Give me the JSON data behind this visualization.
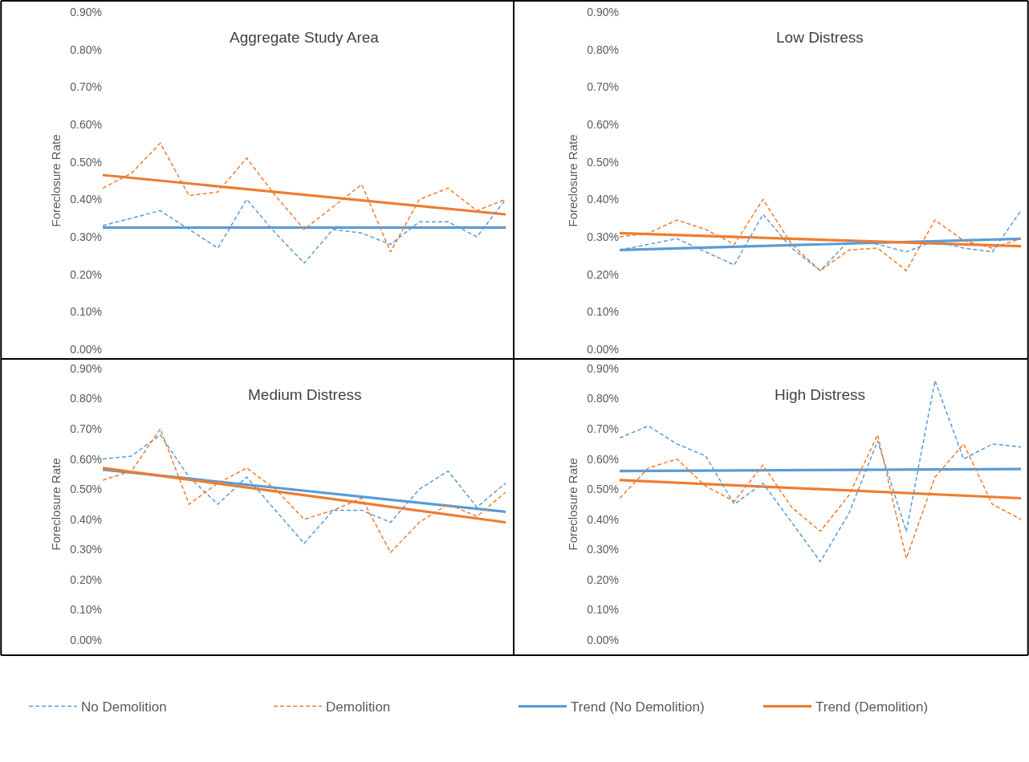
{
  "chart_data": [
    {
      "type": "line",
      "title": "Aggregate Study Area",
      "ylabel": "Foreclosure Rate",
      "categories": [
        null,
        null,
        null,
        null,
        null,
        null,
        null,
        null,
        null,
        null,
        null,
        null,
        null,
        null,
        null
      ],
      "ylim": [
        0,
        0.9
      ],
      "yticks": [
        {
          "value": 0,
          "label": "0.00%"
        },
        {
          "value": 0.1,
          "label": "0.10%"
        },
        {
          "value": 0.2,
          "label": "0.20%"
        },
        {
          "value": 0.3,
          "label": "0.30%"
        },
        {
          "value": 0.4,
          "label": "0.40%"
        },
        {
          "value": 0.5,
          "label": "0.50%"
        },
        {
          "value": 0.6,
          "label": "0.60%"
        },
        {
          "value": 0.7,
          "label": "0.70%"
        },
        {
          "value": 0.8,
          "label": "0.80%"
        },
        {
          "value": 0.9,
          "label": "0.90%"
        }
      ],
      "tick_labels": "y",
      "grid": false,
      "legend": "bottom",
      "marker": "none",
      "series": [
        {
          "name": "No Demolition",
          "color": "#5b9bd5",
          "line_style": "dashed",
          "values": [
            0.33,
            0.35,
            0.37,
            0.32,
            0.27,
            0.4,
            0.31,
            0.23,
            0.32,
            0.31,
            0.28,
            0.34,
            0.34,
            0.3,
            0.4
          ]
        },
        {
          "name": "Demolition",
          "color": "#ed7d31",
          "line_style": "dashed",
          "values": [
            0.43,
            0.47,
            0.55,
            0.41,
            0.42,
            0.51,
            0.41,
            0.32,
            0.38,
            0.44,
            0.26,
            0.4,
            0.43,
            0.37,
            0.4
          ]
        },
        {
          "name": "Trend (No Demolition)",
          "color": "#5b9bd5",
          "line_style": "solid",
          "values": [
            0.325,
            null,
            null,
            null,
            null,
            null,
            null,
            null,
            null,
            null,
            null,
            null,
            null,
            null,
            0.325
          ]
        },
        {
          "name": "Trend (Demolition)",
          "color": "#ed7d31",
          "line_style": "solid",
          "values": [
            0.465,
            null,
            null,
            null,
            null,
            null,
            null,
            null,
            null,
            null,
            null,
            null,
            null,
            null,
            0.36
          ]
        }
      ]
    },
    {
      "type": "line",
      "title": "Low Distress",
      "ylabel": "Foreclosure Rate",
      "categories": [
        null,
        null,
        null,
        null,
        null,
        null,
        null,
        null,
        null,
        null,
        null,
        null,
        null,
        null,
        null
      ],
      "ylim": [
        0,
        0.9
      ],
      "yticks": [
        {
          "value": 0,
          "label": "0.00%"
        },
        {
          "value": 0.1,
          "label": "0.10%"
        },
        {
          "value": 0.2,
          "label": "0.20%"
        },
        {
          "value": 0.3,
          "label": "0.30%"
        },
        {
          "value": 0.4,
          "label": "0.40%"
        },
        {
          "value": 0.5,
          "label": "0.50%"
        },
        {
          "value": 0.6,
          "label": "0.60%"
        },
        {
          "value": 0.7,
          "label": "0.70%"
        },
        {
          "value": 0.8,
          "label": "0.80%"
        },
        {
          "value": 0.9,
          "label": "0.90%"
        }
      ],
      "tick_labels": "y",
      "grid": false,
      "legend": "bottom",
      "marker": "none",
      "series": [
        {
          "name": "No Demolition",
          "color": "#5b9bd5",
          "line_style": "dashed",
          "values": [
            0.265,
            0.28,
            0.295,
            0.26,
            0.225,
            0.36,
            0.27,
            0.21,
            0.29,
            0.28,
            0.26,
            0.29,
            0.27,
            0.26,
            0.37
          ]
        },
        {
          "name": "Demolition",
          "color": "#ed7d31",
          "line_style": "dashed",
          "values": [
            0.3,
            0.31,
            0.345,
            0.32,
            0.28,
            0.4,
            0.28,
            0.21,
            0.265,
            0.27,
            0.21,
            0.345,
            0.29,
            0.27,
            0.295
          ]
        },
        {
          "name": "Trend (No Demolition)",
          "color": "#5b9bd5",
          "line_style": "solid",
          "values": [
            0.265,
            null,
            null,
            null,
            null,
            null,
            null,
            null,
            null,
            null,
            null,
            null,
            null,
            null,
            0.295
          ]
        },
        {
          "name": "Trend (Demolition)",
          "color": "#ed7d31",
          "line_style": "solid",
          "values": [
            0.31,
            null,
            null,
            null,
            null,
            null,
            null,
            null,
            null,
            null,
            null,
            null,
            null,
            null,
            0.275
          ]
        }
      ]
    },
    {
      "type": "line",
      "title": "Medium Distress",
      "ylabel": "Foreclosure Rate",
      "categories": [
        null,
        null,
        null,
        null,
        null,
        null,
        null,
        null,
        null,
        null,
        null,
        null,
        null,
        null,
        null
      ],
      "ylim": [
        0,
        0.9
      ],
      "yticks": [
        {
          "value": 0,
          "label": "0.00%"
        },
        {
          "value": 0.1,
          "label": "0.10%"
        },
        {
          "value": 0.2,
          "label": "0.20%"
        },
        {
          "value": 0.3,
          "label": "0.30%"
        },
        {
          "value": 0.4,
          "label": "0.40%"
        },
        {
          "value": 0.5,
          "label": "0.50%"
        },
        {
          "value": 0.6,
          "label": "0.60%"
        },
        {
          "value": 0.7,
          "label": "0.70%"
        },
        {
          "value": 0.8,
          "label": "0.80%"
        },
        {
          "value": 0.9,
          "label": "0.90%"
        }
      ],
      "tick_labels": "y",
      "grid": false,
      "legend": "bottom",
      "marker": "none",
      "series": [
        {
          "name": "No Demolition",
          "color": "#5b9bd5",
          "line_style": "dashed",
          "values": [
            0.6,
            0.61,
            0.68,
            0.54,
            0.45,
            0.54,
            0.43,
            0.32,
            0.43,
            0.43,
            0.39,
            0.5,
            0.56,
            0.44,
            0.52
          ]
        },
        {
          "name": "Demolition",
          "color": "#ed7d31",
          "line_style": "dashed",
          "values": [
            0.53,
            0.56,
            0.7,
            0.45,
            0.52,
            0.57,
            0.5,
            0.4,
            0.43,
            0.47,
            0.29,
            0.39,
            0.45,
            0.41,
            0.49
          ]
        },
        {
          "name": "Trend (No Demolition)",
          "color": "#5b9bd5",
          "line_style": "solid",
          "values": [
            0.565,
            null,
            null,
            null,
            null,
            null,
            null,
            null,
            null,
            null,
            null,
            null,
            null,
            null,
            0.425
          ]
        },
        {
          "name": "Trend (Demolition)",
          "color": "#ed7d31",
          "line_style": "solid",
          "values": [
            0.57,
            null,
            null,
            null,
            null,
            null,
            null,
            null,
            null,
            null,
            null,
            null,
            null,
            null,
            0.39
          ]
        }
      ]
    },
    {
      "type": "line",
      "title": "High Distress",
      "ylabel": "Foreclosure Rate",
      "categories": [
        null,
        null,
        null,
        null,
        null,
        null,
        null,
        null,
        null,
        null,
        null,
        null,
        null,
        null,
        null
      ],
      "ylim": [
        0,
        0.9
      ],
      "yticks": [
        {
          "value": 0,
          "label": "0.00%"
        },
        {
          "value": 0.1,
          "label": "0.10%"
        },
        {
          "value": 0.2,
          "label": "0.20%"
        },
        {
          "value": 0.3,
          "label": "0.30%"
        },
        {
          "value": 0.4,
          "label": "0.40%"
        },
        {
          "value": 0.5,
          "label": "0.50%"
        },
        {
          "value": 0.6,
          "label": "0.60%"
        },
        {
          "value": 0.7,
          "label": "0.70%"
        },
        {
          "value": 0.8,
          "label": "0.80%"
        },
        {
          "value": 0.9,
          "label": "0.90%"
        }
      ],
      "tick_labels": "y",
      "grid": false,
      "legend": "bottom",
      "marker": "none",
      "series": [
        {
          "name": "No Demolition",
          "color": "#5b9bd5",
          "line_style": "dashed",
          "values": [
            0.67,
            0.71,
            0.65,
            0.61,
            0.45,
            0.52,
            0.39,
            0.26,
            0.42,
            0.66,
            0.36,
            0.86,
            0.6,
            0.65,
            0.64
          ]
        },
        {
          "name": "Demolition",
          "color": "#ed7d31",
          "line_style": "dashed",
          "values": [
            0.47,
            0.57,
            0.6,
            0.51,
            0.46,
            0.58,
            0.44,
            0.36,
            0.48,
            0.68,
            0.27,
            0.54,
            0.65,
            0.45,
            0.4
          ]
        },
        {
          "name": "Trend (No Demolition)",
          "color": "#5b9bd5",
          "line_style": "solid",
          "values": [
            0.56,
            null,
            null,
            null,
            null,
            null,
            null,
            null,
            null,
            null,
            null,
            null,
            null,
            null,
            0.567
          ]
        },
        {
          "name": "Trend (Demolition)",
          "color": "#ed7d31",
          "line_style": "solid",
          "values": [
            0.53,
            null,
            null,
            null,
            null,
            null,
            null,
            null,
            null,
            null,
            null,
            null,
            null,
            null,
            0.47
          ]
        }
      ]
    }
  ]
}
